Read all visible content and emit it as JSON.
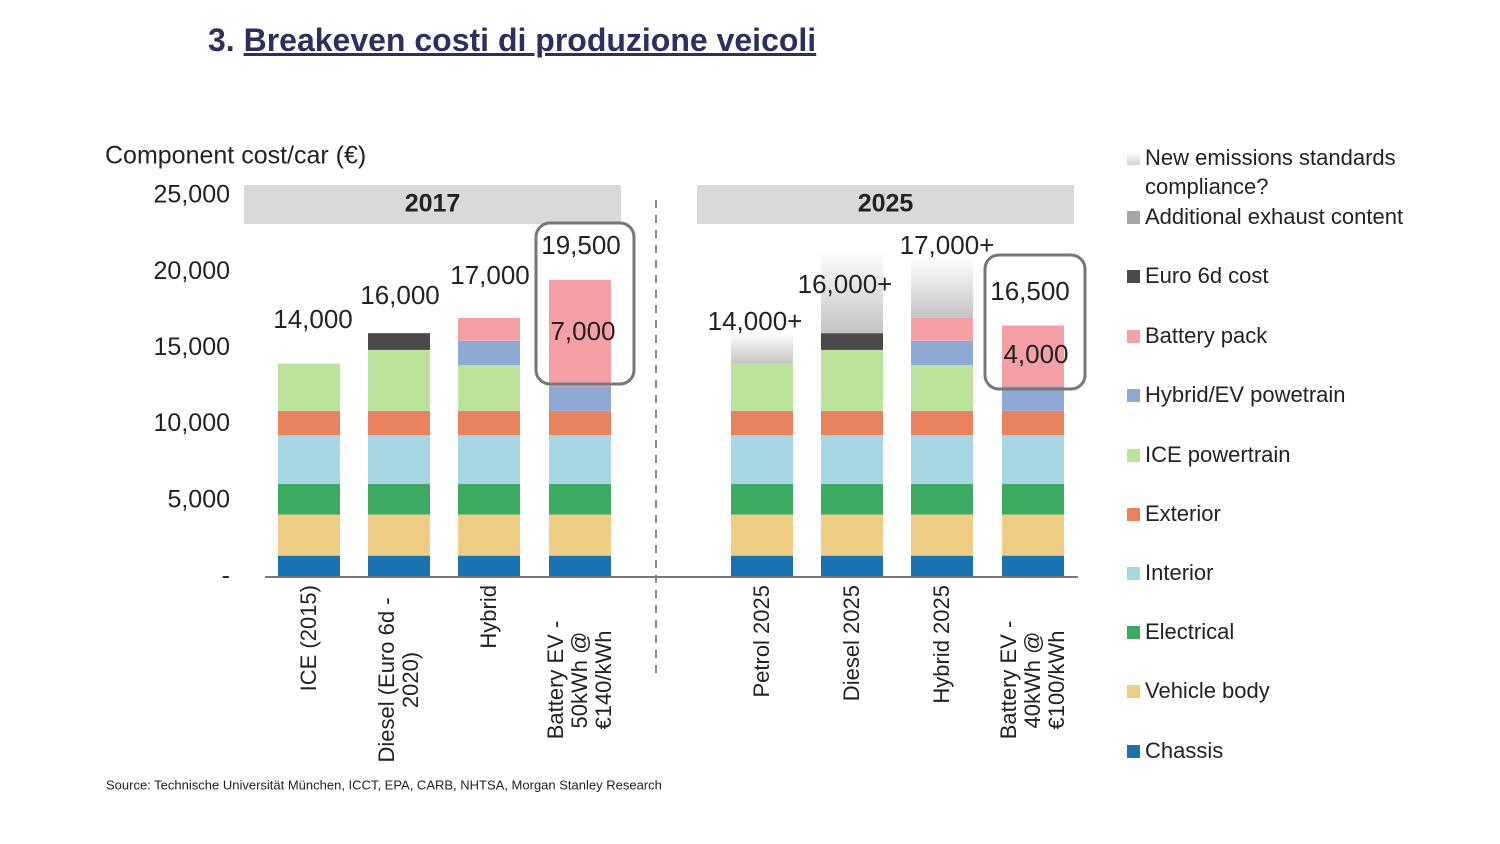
{
  "slide": {
    "title_number": "3.",
    "title": "Breakeven costi di produzione veicoli",
    "source": "Source: Technische Universität München, ICCT, EPA, CARB, NHTSA, Morgan Stanley Research"
  },
  "chart_data": {
    "type": "stacked_bar",
    "y_label": "Component cost/car (€)",
    "groups": [
      {
        "label": "2017",
        "from": 0,
        "to": 3
      },
      {
        "label": "2025",
        "from": 4,
        "to": 7
      }
    ],
    "categories": [
      "ICE (2015)",
      "Diesel (Euro 6d - 2020)",
      "Hybrid",
      "Battery EV - 50kWh @ €140/kWh",
      "Petrol 2025",
      "Diesel 2025",
      "Hybrid 2025",
      "Battery EV - 40kWh @ €100/kWh"
    ],
    "total_labels": [
      "14,000",
      "16,000",
      "17,000",
      "19,500",
      "14,000+",
      "16,000+",
      "17,000+",
      "16,500"
    ],
    "ylim": [
      0,
      25000
    ],
    "yticks": [
      {
        "value": 0,
        "label": "-"
      },
      {
        "value": 5000,
        "label": "5,000"
      },
      {
        "value": 10000,
        "label": "10,000"
      },
      {
        "value": 15000,
        "label": "15,000"
      },
      {
        "value": 20000,
        "label": "20,000"
      },
      {
        "value": 25000,
        "label": "25,000"
      }
    ],
    "series": [
      {
        "name": "Chassis",
        "color": "#1a73b0",
        "values": [
          1400,
          1400,
          1400,
          1400,
          1400,
          1400,
          1400,
          1400
        ]
      },
      {
        "name": "Vehicle body",
        "color": "#efcd84",
        "values": [
          2700,
          2700,
          2700,
          2700,
          2700,
          2700,
          2700,
          2700
        ]
      },
      {
        "name": "Electrical",
        "color": "#3daa62",
        "values": [
          2000,
          2000,
          2000,
          2000,
          2000,
          2000,
          2000,
          2000
        ]
      },
      {
        "name": "Interior",
        "color": "#a8d7e4",
        "values": [
          3200,
          3200,
          3200,
          3200,
          3200,
          3200,
          3200,
          3200
        ]
      },
      {
        "name": "Exterior",
        "color": "#e9825f",
        "values": [
          1600,
          1600,
          1600,
          1600,
          1600,
          1600,
          1600,
          1600
        ]
      },
      {
        "name": "ICE powertrain",
        "color": "#bde29c",
        "values": [
          3100,
          4000,
          3000,
          null,
          3100,
          4000,
          3000,
          null
        ]
      },
      {
        "name": "Hybrid/EV powetrain",
        "color": "#8eaad4",
        "values": [
          null,
          null,
          1600,
          1600,
          null,
          null,
          1600,
          1600
        ]
      },
      {
        "name": "Battery pack",
        "color": "#f5a0a6",
        "values": [
          null,
          null,
          1500,
          7000,
          null,
          null,
          1500,
          4000
        ],
        "value_labels": [
          null,
          null,
          null,
          "7,000",
          null,
          null,
          null,
          "4,000"
        ]
      },
      {
        "name": "Euro 6d cost",
        "color": "#4a4a4a",
        "values": [
          null,
          1100,
          null,
          null,
          null,
          1100,
          null,
          null
        ]
      },
      {
        "name": "Additional exhaust content",
        "color": "#a6a6a6",
        "values": [
          null,
          null,
          null,
          null,
          null,
          null,
          null,
          null
        ]
      },
      {
        "name": "New emissions standards compliance?",
        "color": "#d4d4d4",
        "values": [
          null,
          null,
          null,
          null,
          2000,
          5500,
          4000,
          null
        ]
      }
    ]
  }
}
